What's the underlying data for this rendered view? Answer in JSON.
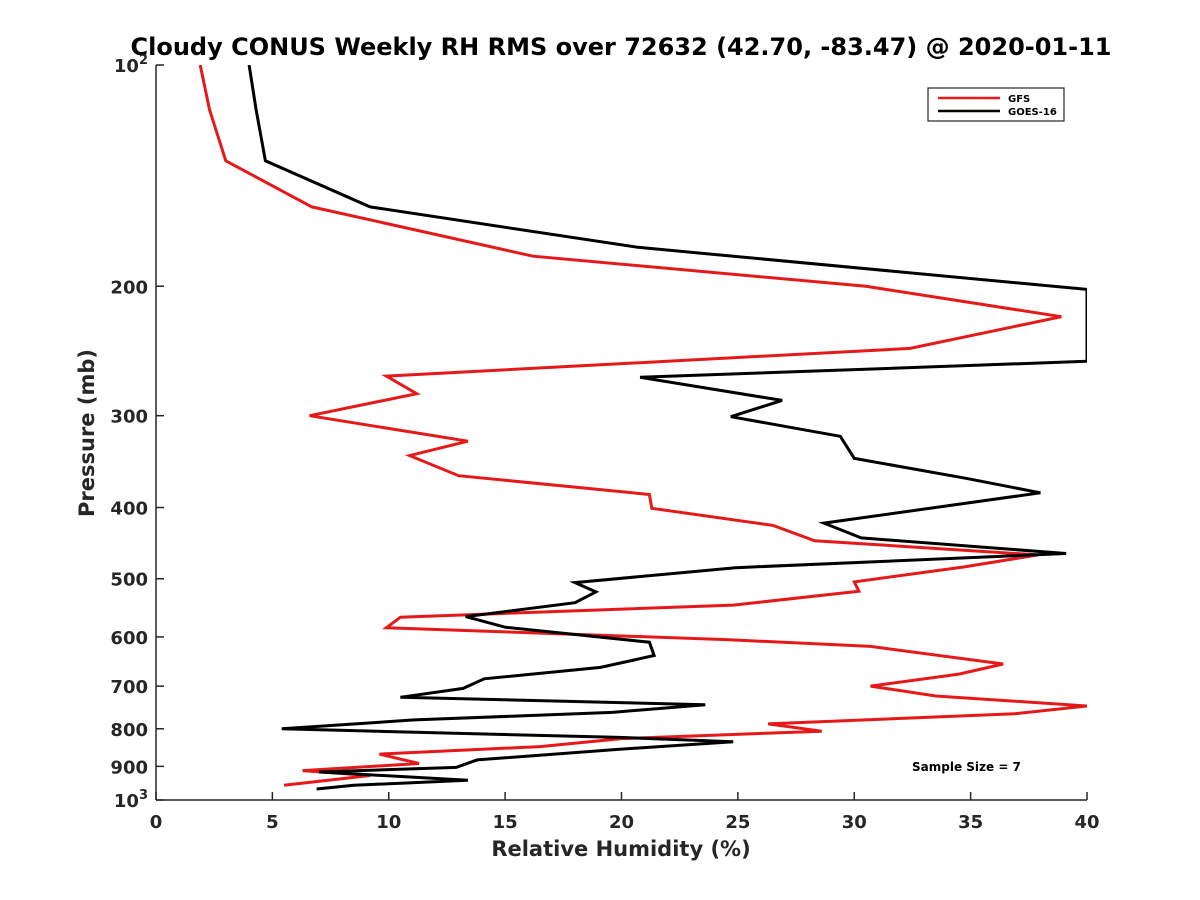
{
  "chart_data": {
    "type": "line",
    "title": "Cloudy CONUS Weekly RH RMS over 72632 (42.70, -83.47) @ 2020-01-11",
    "xlabel": "Relative Humidity (%)",
    "ylabel": "Pressure (mb)",
    "xlim": [
      0,
      40
    ],
    "ylim": [
      100,
      1000
    ],
    "y_scale": "log",
    "y_reversed": true,
    "grid": false,
    "legend_position": "top-right",
    "x_ticks": [
      "0",
      "5",
      "10",
      "15",
      "20",
      "25",
      "30",
      "35",
      "40"
    ],
    "y_ticks": [
      {
        "value": 100,
        "label": "10",
        "sup": "2"
      },
      {
        "value": 200,
        "label": "200",
        "sup": ""
      },
      {
        "value": 300,
        "label": "300",
        "sup": ""
      },
      {
        "value": 400,
        "label": "400",
        "sup": ""
      },
      {
        "value": 500,
        "label": "500",
        "sup": ""
      },
      {
        "value": 600,
        "label": "600",
        "sup": ""
      },
      {
        "value": 700,
        "label": "700",
        "sup": ""
      },
      {
        "value": 800,
        "label": "800",
        "sup": ""
      },
      {
        "value": 900,
        "label": "900",
        "sup": ""
      },
      {
        "value": 1000,
        "label": "10",
        "sup": "3"
      }
    ],
    "annotation": "Sample Size = 7",
    "series": [
      {
        "name": "GFS",
        "color": "#e6191a",
        "points": [
          [
            1.9,
            100
          ],
          [
            2.3,
            115
          ],
          [
            3.0,
            135
          ],
          [
            6.7,
            156
          ],
          [
            16.2,
            182
          ],
          [
            30.5,
            200
          ],
          [
            38.9,
            220
          ],
          [
            32.4,
            243
          ],
          [
            9.9,
            265
          ],
          [
            11.2,
            280
          ],
          [
            6.6,
            300
          ],
          [
            13.4,
            325
          ],
          [
            10.9,
            340
          ],
          [
            13.0,
            362
          ],
          [
            21.2,
            384
          ],
          [
            21.3,
            401
          ],
          [
            26.5,
            423
          ],
          [
            28.3,
            444
          ],
          [
            37.9,
            464
          ],
          [
            34.7,
            482
          ],
          [
            30.0,
            505
          ],
          [
            30.2,
            520
          ],
          [
            24.8,
            543
          ],
          [
            10.5,
            564
          ],
          [
            9.9,
            583
          ],
          [
            24.5,
            605
          ],
          [
            30.7,
            618
          ],
          [
            36.4,
            653
          ],
          [
            34.5,
            674
          ],
          [
            30.7,
            700
          ],
          [
            33.5,
            722
          ],
          [
            40.0,
            745
          ],
          [
            36.9,
            763
          ],
          [
            26.3,
            788
          ],
          [
            28.6,
            806
          ],
          [
            20.0,
            825
          ],
          [
            16.5,
            846
          ],
          [
            9.6,
            866
          ],
          [
            11.3,
            892
          ],
          [
            6.3,
            912
          ],
          [
            9.2,
            926
          ],
          [
            5.5,
            955
          ]
        ]
      },
      {
        "name": "GOES-16",
        "color": "#000000",
        "points": [
          [
            4.0,
            100
          ],
          [
            4.3,
            115
          ],
          [
            4.7,
            135
          ],
          [
            9.2,
            156
          ],
          [
            20.7,
            177
          ],
          [
            40.0,
            202
          ],
          [
            40.0,
            253
          ],
          [
            20.8,
            266
          ],
          [
            26.9,
            286
          ],
          [
            24.7,
            301
          ],
          [
            29.4,
            320
          ],
          [
            30.0,
            343
          ],
          [
            34.8,
            365
          ],
          [
            38.0,
            382
          ],
          [
            28.7,
            420
          ],
          [
            30.3,
            440
          ],
          [
            39.1,
            462
          ],
          [
            24.9,
            483
          ],
          [
            18.0,
            506
          ],
          [
            18.9,
            521
          ],
          [
            18.0,
            539
          ],
          [
            13.3,
            563
          ],
          [
            15.0,
            582
          ],
          [
            21.2,
            610
          ],
          [
            21.4,
            636
          ],
          [
            19.1,
            660
          ],
          [
            14.1,
            684
          ],
          [
            13.2,
            705
          ],
          [
            10.5,
            725
          ],
          [
            23.6,
            742
          ],
          [
            19.6,
            760
          ],
          [
            11.1,
            778
          ],
          [
            5.4,
            800
          ],
          [
            19.9,
            822
          ],
          [
            24.8,
            833
          ],
          [
            19.7,
            854
          ],
          [
            13.8,
            882
          ],
          [
            12.9,
            903
          ],
          [
            7.0,
            916
          ],
          [
            13.4,
            940
          ],
          [
            8.5,
            955
          ],
          [
            6.9,
            966
          ]
        ]
      }
    ]
  }
}
